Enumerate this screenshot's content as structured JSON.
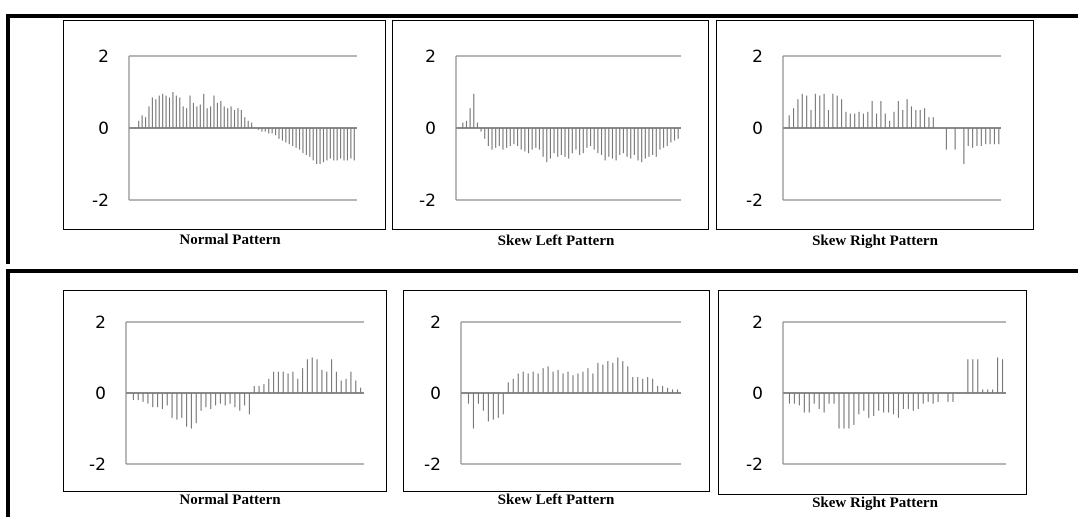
{
  "chart_data": [
    {
      "type": "bar",
      "title": "Normal Pattern",
      "ylim": [
        -2,
        2
      ],
      "yticks": [
        "2",
        "0",
        "-2"
      ],
      "grid": true,
      "values": [
        0.2,
        0.35,
        0.3,
        0.6,
        0.85,
        0.8,
        0.9,
        0.95,
        0.9,
        0.85,
        1.0,
        0.9,
        0.85,
        0.6,
        0.55,
        0.9,
        0.7,
        0.6,
        0.65,
        0.95,
        0.55,
        0.6,
        0.9,
        0.7,
        0.75,
        0.6,
        0.55,
        0.6,
        0.5,
        0.55,
        0.5,
        0.3,
        0.2,
        0.15,
        0.0,
        -0.05,
        -0.1,
        -0.1,
        -0.15,
        -0.15,
        -0.2,
        -0.3,
        -0.35,
        -0.4,
        -0.45,
        -0.5,
        -0.55,
        -0.6,
        -0.7,
        -0.75,
        -0.8,
        -0.9,
        -1.0,
        -1.0,
        -0.95,
        -0.9,
        -0.85,
        -0.9,
        -0.9,
        -0.85,
        -0.9,
        -0.9,
        -0.85,
        -0.9
      ]
    },
    {
      "type": "bar",
      "title": "Skew Left Pattern",
      "ylim": [
        -2,
        2
      ],
      "yticks": [
        "2",
        "0",
        "-2"
      ],
      "grid": true,
      "values": [
        0.15,
        0.2,
        0.55,
        0.95,
        0.15,
        -0.1,
        -0.3,
        -0.5,
        -0.6,
        -0.55,
        -0.5,
        -0.6,
        -0.55,
        -0.5,
        -0.45,
        -0.5,
        -0.6,
        -0.65,
        -0.7,
        -0.6,
        -0.55,
        -0.6,
        -0.8,
        -0.95,
        -0.85,
        -0.7,
        -0.8,
        -0.75,
        -0.8,
        -0.85,
        -0.7,
        -0.6,
        -0.75,
        -0.7,
        -0.55,
        -0.5,
        -0.6,
        -0.7,
        -0.75,
        -0.9,
        -0.8,
        -0.85,
        -0.9,
        -0.75,
        -0.7,
        -0.8,
        -0.85,
        -0.75,
        -0.9,
        -0.95,
        -0.85,
        -0.8,
        -0.75,
        -0.8,
        -0.6,
        -0.55,
        -0.5,
        -0.4,
        -0.35,
        -0.3
      ]
    },
    {
      "type": "bar",
      "title": "Skew Right Pattern",
      "ylim": [
        -2,
        2
      ],
      "yticks": [
        "2",
        "0",
        "-2"
      ],
      "grid": true,
      "values": [
        0.35,
        0.55,
        0.8,
        0.95,
        0.9,
        0.5,
        0.95,
        0.9,
        0.95,
        0.5,
        0.95,
        0.9,
        0.8,
        0.45,
        0.4,
        0.4,
        0.45,
        0.4,
        0.45,
        0.75,
        0.4,
        0.75,
        0.4,
        0.2,
        0.45,
        0.75,
        0.5,
        0.8,
        0.6,
        0.5,
        0.5,
        0.55,
        0.3,
        0.3,
        0.0,
        0.0,
        -0.6,
        0.0,
        -0.6,
        0.0,
        -1.0,
        -0.5,
        -0.55,
        -0.5,
        -0.5,
        -0.45,
        -0.45,
        -0.45,
        -0.45
      ]
    },
    {
      "type": "bar",
      "title": "Normal Pattern",
      "ylim": [
        -2,
        2
      ],
      "yticks": [
        "2",
        "0",
        "-2"
      ],
      "grid": true,
      "values": [
        -0.2,
        -0.2,
        -0.25,
        -0.3,
        -0.4,
        -0.4,
        -0.45,
        -0.35,
        -0.7,
        -0.75,
        -0.7,
        -0.95,
        -1.0,
        -0.85,
        -0.5,
        -0.4,
        -0.45,
        -0.35,
        -0.3,
        -0.35,
        -0.3,
        -0.4,
        -0.5,
        -0.35,
        -0.6,
        0.2,
        0.2,
        0.25,
        0.4,
        0.6,
        0.6,
        0.6,
        0.55,
        0.6,
        0.4,
        0.7,
        0.95,
        1.0,
        0.95,
        0.65,
        0.6,
        0.95,
        0.6,
        0.35,
        0.4,
        0.6,
        0.35,
        0.15
      ]
    },
    {
      "type": "bar",
      "title": "Skew Left Pattern",
      "ylim": [
        -2,
        2
      ],
      "yticks": [
        "2",
        "0",
        "-2"
      ],
      "grid": true,
      "values": [
        -0.3,
        -1.0,
        -0.3,
        -0.5,
        -0.8,
        -0.75,
        -0.7,
        -0.6,
        0.3,
        0.4,
        0.55,
        0.6,
        0.55,
        0.6,
        0.55,
        0.7,
        0.75,
        0.6,
        0.65,
        0.55,
        0.6,
        0.5,
        0.55,
        0.6,
        0.7,
        0.55,
        0.85,
        0.8,
        0.9,
        0.85,
        1.0,
        0.9,
        0.75,
        0.45,
        0.45,
        0.4,
        0.45,
        0.4,
        0.2,
        0.2,
        0.15,
        0.1,
        0.1
      ]
    },
    {
      "type": "bar",
      "title": "Skew Right Pattern",
      "ylim": [
        -2,
        2
      ],
      "yticks": [
        "2",
        "0",
        "-2"
      ],
      "grid": true,
      "values": [
        -0.3,
        -0.3,
        -0.35,
        -0.55,
        -0.55,
        -0.3,
        -0.45,
        -0.55,
        -0.3,
        -0.3,
        -1.0,
        -1.0,
        -1.0,
        -0.9,
        -0.6,
        -0.5,
        -0.7,
        -0.65,
        -0.5,
        -0.55,
        -0.55,
        -0.6,
        -0.7,
        -0.45,
        -0.45,
        -0.5,
        -0.45,
        -0.3,
        -0.25,
        -0.3,
        -0.25,
        0.0,
        -0.25,
        -0.25,
        0.0,
        0.0,
        0.95,
        0.95,
        0.95,
        0.1,
        0.1,
        0.1,
        1.0,
        0.95
      ]
    }
  ]
}
